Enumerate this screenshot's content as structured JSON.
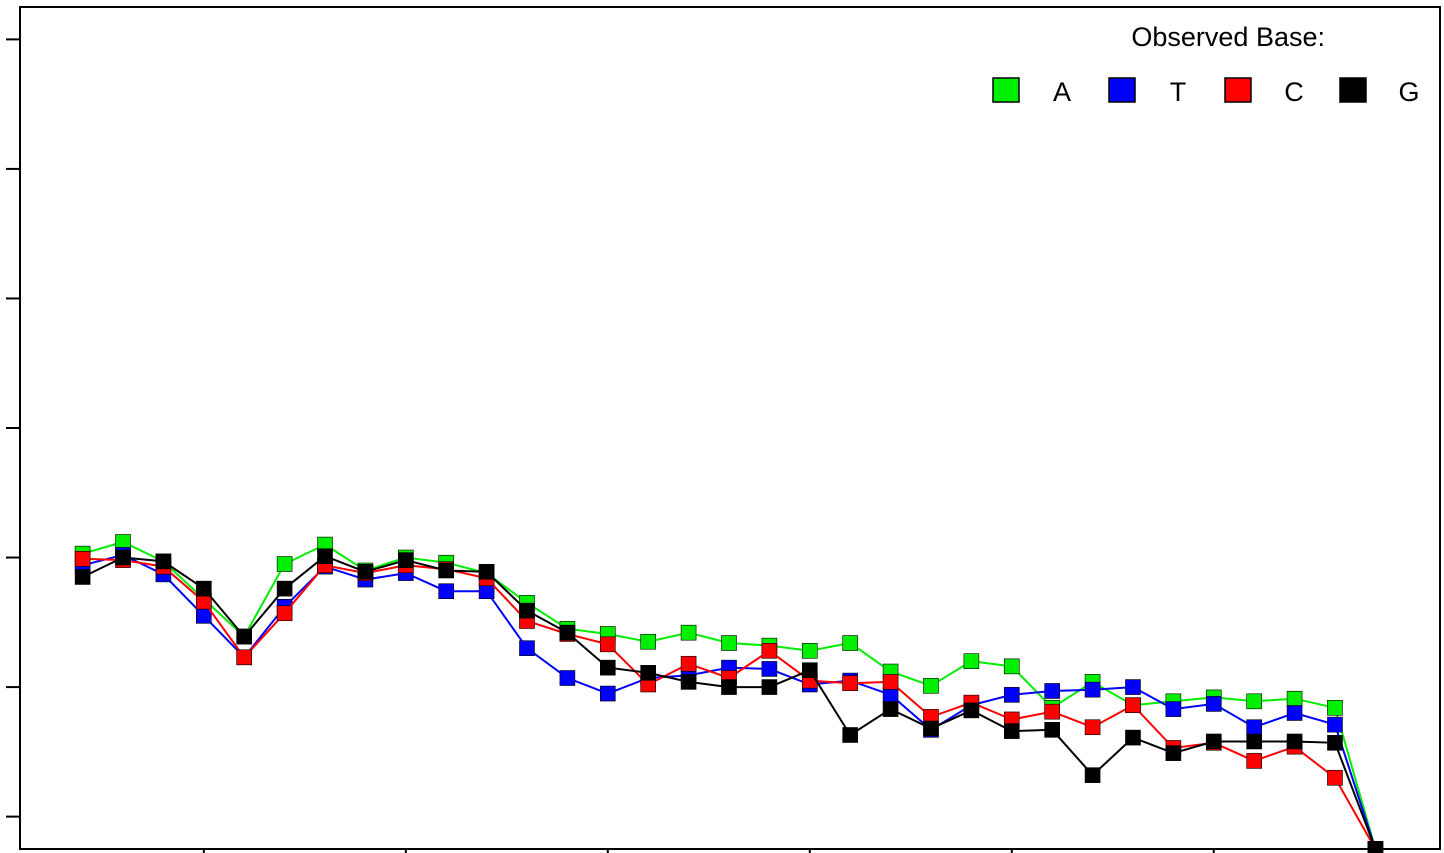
{
  "chart_data": {
    "type": "line",
    "title": "",
    "xlabel": "",
    "ylabel": "",
    "x": [
      1,
      2,
      3,
      4,
      5,
      6,
      7,
      8,
      9,
      10,
      11,
      12,
      13,
      14,
      15,
      16,
      17,
      18,
      19,
      20,
      21,
      22,
      23,
      24,
      25,
      26,
      27,
      28,
      29,
      30,
      31,
      32,
      33
    ],
    "xlim": [
      -0.55,
      34.6
    ],
    "ylim": [
      0,
      6.5
    ],
    "y_tick_values": [
      0.25,
      1.25,
      2.25,
      3.25,
      4.25,
      5.25,
      6.25
    ],
    "x_tick_values": [
      4,
      9,
      14,
      19,
      24,
      29
    ],
    "tick_labels_visible": false,
    "grid": false,
    "legend": {
      "title": "Observed Base:",
      "placement": "top-right",
      "entries": [
        {
          "label": "A",
          "color": "#00ee00"
        },
        {
          "label": "T",
          "color": "#0000ff"
        },
        {
          "label": "C",
          "color": "#ff0000"
        },
        {
          "label": "G",
          "color": "#000000"
        }
      ]
    },
    "series": [
      {
        "name": "A",
        "color": "#00ee00",
        "values": [
          2.28,
          2.37,
          2.22,
          1.93,
          1.64,
          2.2,
          2.35,
          2.15,
          2.25,
          2.21,
          2.13,
          1.9,
          1.7,
          1.66,
          1.6,
          1.67,
          1.59,
          1.57,
          1.53,
          1.59,
          1.37,
          1.26,
          1.45,
          1.41,
          1.09,
          1.29,
          1.11,
          1.14,
          1.17,
          1.14,
          1.16,
          1.09,
          0.0
        ]
      },
      {
        "name": "T",
        "color": "#0000ff",
        "values": [
          2.19,
          2.27,
          2.12,
          1.8,
          1.48,
          1.87,
          2.18,
          2.08,
          2.13,
          1.99,
          1.99,
          1.55,
          1.32,
          1.2,
          1.32,
          1.34,
          1.4,
          1.39,
          1.27,
          1.3,
          1.19,
          0.92,
          1.11,
          1.19,
          1.22,
          1.23,
          1.25,
          1.08,
          1.12,
          0.94,
          1.05,
          0.96,
          0.0
        ]
      },
      {
        "name": "C",
        "color": "#ff0000",
        "values": [
          2.24,
          2.23,
          2.18,
          1.91,
          1.48,
          1.82,
          2.19,
          2.13,
          2.19,
          2.16,
          2.09,
          1.76,
          1.66,
          1.58,
          1.27,
          1.43,
          1.32,
          1.53,
          1.3,
          1.28,
          1.29,
          1.02,
          1.13,
          1.0,
          1.06,
          0.94,
          1.11,
          0.78,
          0.82,
          0.68,
          0.79,
          0.55,
          0.0
        ]
      },
      {
        "name": "G",
        "color": "#000000",
        "values": [
          2.1,
          2.25,
          2.22,
          2.01,
          1.64,
          2.01,
          2.26,
          2.14,
          2.23,
          2.15,
          2.14,
          1.84,
          1.67,
          1.4,
          1.36,
          1.29,
          1.25,
          1.25,
          1.38,
          0.88,
          1.08,
          0.93,
          1.07,
          0.91,
          0.92,
          0.57,
          0.86,
          0.74,
          0.83,
          0.83,
          0.83,
          0.82,
          0.0
        ]
      }
    ]
  }
}
